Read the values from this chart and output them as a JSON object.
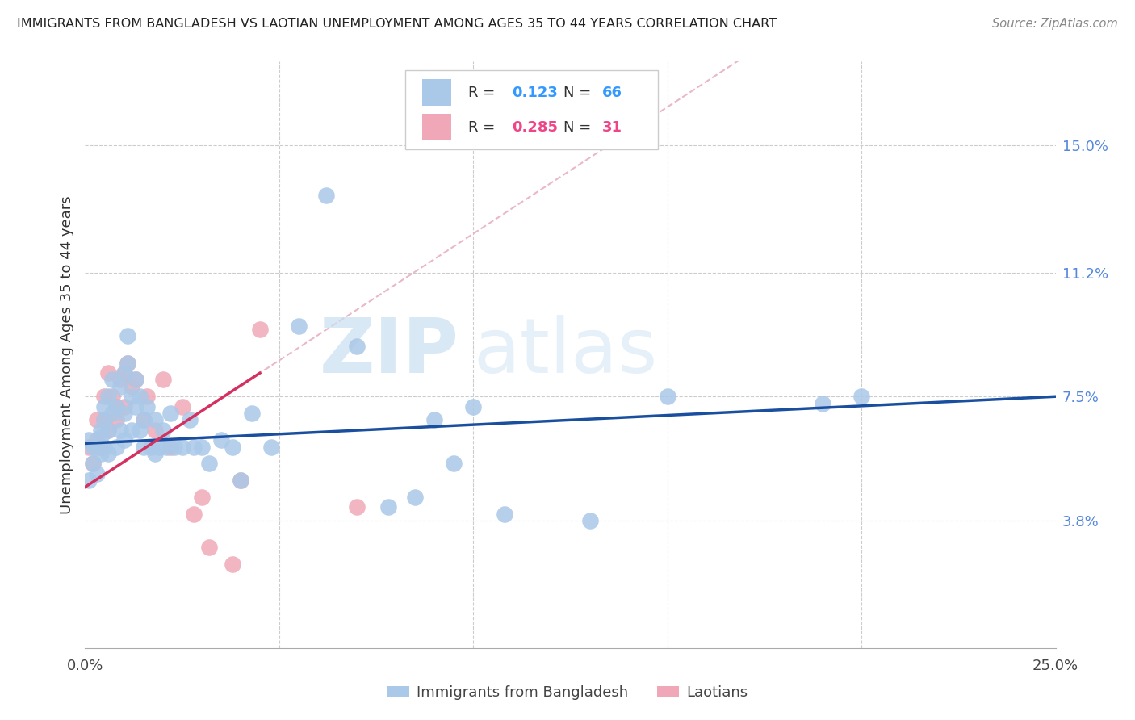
{
  "title": "IMMIGRANTS FROM BANGLADESH VS LAOTIAN UNEMPLOYMENT AMONG AGES 35 TO 44 YEARS CORRELATION CHART",
  "source": "Source: ZipAtlas.com",
  "ylabel": "Unemployment Among Ages 35 to 44 years",
  "xlim": [
    0.0,
    0.25
  ],
  "ylim": [
    0.0,
    0.175
  ],
  "ytick_vals": [
    0.038,
    0.075,
    0.112,
    0.15
  ],
  "ytick_labels": [
    "3.8%",
    "7.5%",
    "11.2%",
    "15.0%"
  ],
  "legend1_r": "0.123",
  "legend1_n": "66",
  "legend2_r": "0.285",
  "legend2_n": "31",
  "blue_color": "#aac8e8",
  "pink_color": "#f0a8b8",
  "blue_line_color": "#1a4fa0",
  "pink_line_color": "#d43060",
  "pink_dashed_color": "#e8b0c0",
  "blue_r_color": "#3399ff",
  "pink_r_color": "#ee4488",
  "blue_x": [
    0.001,
    0.001,
    0.002,
    0.002,
    0.003,
    0.003,
    0.004,
    0.004,
    0.004,
    0.005,
    0.005,
    0.005,
    0.006,
    0.006,
    0.006,
    0.007,
    0.007,
    0.008,
    0.008,
    0.009,
    0.009,
    0.01,
    0.01,
    0.01,
    0.011,
    0.011,
    0.012,
    0.012,
    0.013,
    0.013,
    0.014,
    0.014,
    0.015,
    0.015,
    0.016,
    0.017,
    0.018,
    0.018,
    0.019,
    0.02,
    0.021,
    0.022,
    0.023,
    0.025,
    0.027,
    0.028,
    0.03,
    0.032,
    0.035,
    0.038,
    0.04,
    0.043,
    0.048,
    0.055,
    0.062,
    0.07,
    0.078,
    0.085,
    0.09,
    0.095,
    0.1,
    0.108,
    0.13,
    0.15,
    0.19,
    0.2
  ],
  "blue_y": [
    0.062,
    0.05,
    0.06,
    0.055,
    0.06,
    0.052,
    0.063,
    0.065,
    0.058,
    0.068,
    0.072,
    0.06,
    0.075,
    0.065,
    0.058,
    0.07,
    0.08,
    0.072,
    0.06,
    0.065,
    0.078,
    0.082,
    0.07,
    0.062,
    0.085,
    0.093,
    0.075,
    0.065,
    0.072,
    0.08,
    0.075,
    0.065,
    0.068,
    0.06,
    0.072,
    0.06,
    0.058,
    0.068,
    0.06,
    0.065,
    0.06,
    0.07,
    0.06,
    0.06,
    0.068,
    0.06,
    0.06,
    0.055,
    0.062,
    0.06,
    0.05,
    0.07,
    0.06,
    0.096,
    0.135,
    0.09,
    0.042,
    0.045,
    0.068,
    0.055,
    0.072,
    0.04,
    0.038,
    0.075,
    0.073,
    0.075
  ],
  "pink_x": [
    0.001,
    0.002,
    0.003,
    0.003,
    0.004,
    0.005,
    0.005,
    0.006,
    0.006,
    0.007,
    0.008,
    0.008,
    0.009,
    0.01,
    0.01,
    0.011,
    0.012,
    0.013,
    0.015,
    0.016,
    0.018,
    0.02,
    0.022,
    0.025,
    0.028,
    0.03,
    0.032,
    0.038,
    0.04,
    0.045,
    0.07
  ],
  "pink_y": [
    0.06,
    0.055,
    0.068,
    0.062,
    0.06,
    0.075,
    0.068,
    0.082,
    0.065,
    0.075,
    0.072,
    0.068,
    0.08,
    0.082,
    0.072,
    0.085,
    0.078,
    0.08,
    0.068,
    0.075,
    0.065,
    0.08,
    0.06,
    0.072,
    0.04,
    0.045,
    0.03,
    0.025,
    0.05,
    0.095,
    0.042
  ],
  "blue_line_x0": 0.0,
  "blue_line_x1": 0.25,
  "blue_line_y0": 0.061,
  "blue_line_y1": 0.075,
  "pink_line_x0": 0.0,
  "pink_line_x1": 0.045,
  "pink_line_y0": 0.048,
  "pink_line_y1": 0.082
}
